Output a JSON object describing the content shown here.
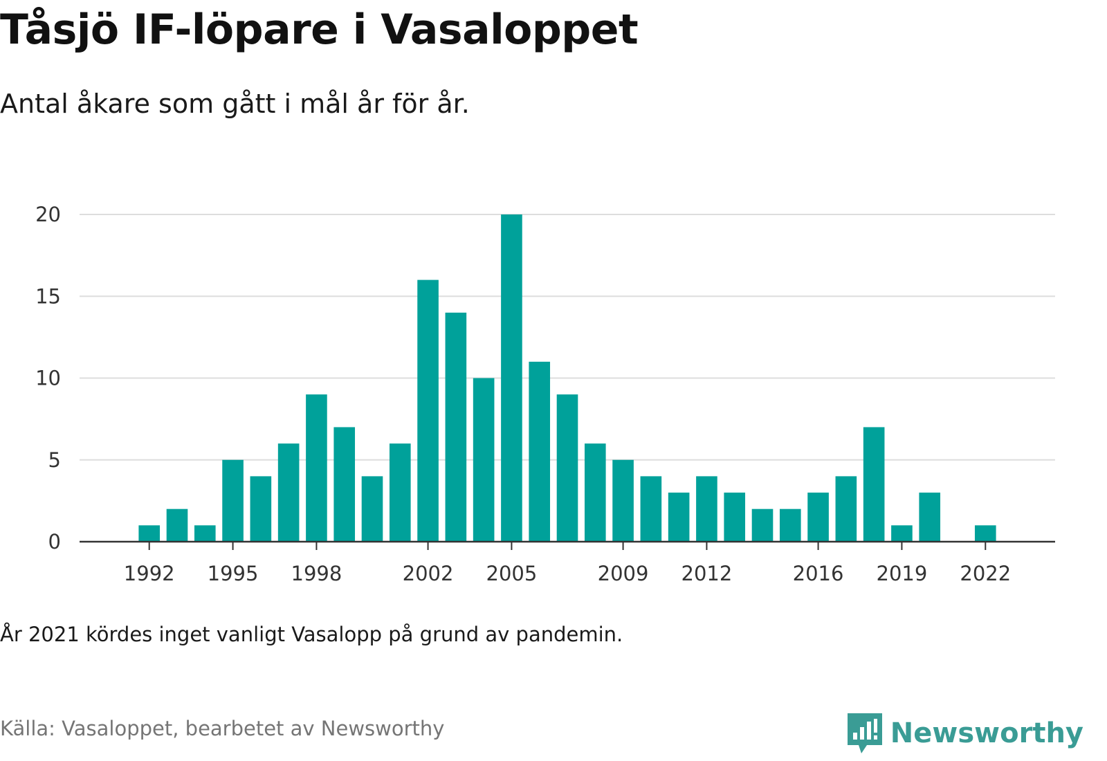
{
  "title": "Tåsjö IF-löpare i Vasaloppet",
  "subtitle": "Antal åkare som gått i mål år för år.",
  "note": "År 2021 kördes inget vanligt Vasalopp på grund av pandemin.",
  "source": "Källa: Vasaloppet, bearbetet av Newsworthy",
  "brand": {
    "name": "Newsworthy",
    "icon": "newsworthy-logo-icon",
    "color": "#3a9c95"
  },
  "chart_data": {
    "type": "bar",
    "title": "Tåsjö IF-löpare i Vasaloppet",
    "subtitle": "Antal åkare som gått i mål år för år.",
    "xlabel": "",
    "ylabel": "",
    "x": [
      1992,
      1993,
      1994,
      1995,
      1996,
      1997,
      1998,
      1999,
      2000,
      2001,
      2002,
      2003,
      2004,
      2005,
      2006,
      2007,
      2008,
      2009,
      2010,
      2011,
      2012,
      2013,
      2014,
      2015,
      2016,
      2017,
      2018,
      2019,
      2020,
      2021,
      2022
    ],
    "values": [
      1,
      2,
      1,
      5,
      4,
      6,
      9,
      7,
      4,
      6,
      16,
      14,
      10,
      20,
      11,
      9,
      6,
      5,
      4,
      3,
      4,
      3,
      2,
      2,
      3,
      4,
      7,
      1,
      3,
      null,
      1
    ],
    "x_ticks": [
      "1992",
      "1995",
      "1998",
      "2002",
      "2005",
      "2009",
      "2012",
      "2016",
      "2019",
      "2022"
    ],
    "y_ticks": [
      "0",
      "5",
      "10",
      "15",
      "20"
    ],
    "xlim": [
      1989.5,
      2024.5
    ],
    "ylim": [
      0,
      20
    ],
    "grid": true,
    "legend": "none",
    "bar_color": "#00a19a",
    "grid_color": "#dddddd"
  }
}
